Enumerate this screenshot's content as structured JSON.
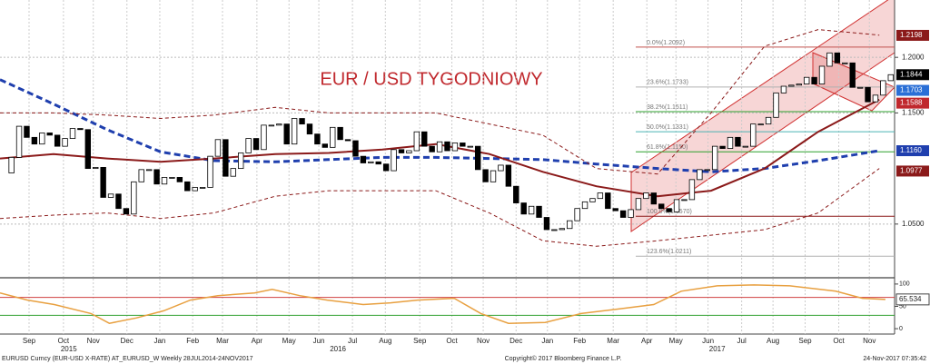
{
  "chart_data": [
    {
      "type": "candlestick",
      "title": "EUR / USD TYGODNIOWY",
      "xlim": [
        0,
        117
      ],
      "xticks": [
        {
          "value": 3.8,
          "label": "Sep"
        },
        {
          "value": 8.3,
          "label": "Oct"
        },
        {
          "value": 12.2,
          "label": "Nov"
        },
        {
          "value": 16.6,
          "label": "Dec"
        },
        {
          "value": 20.9,
          "label": "Jan"
        },
        {
          "value": 25.2,
          "label": "Feb"
        },
        {
          "value": 29.1,
          "label": "Mar"
        },
        {
          "value": 33.6,
          "label": "Apr"
        },
        {
          "value": 37.8,
          "label": "May"
        },
        {
          "value": 41.7,
          "label": "Jun"
        },
        {
          "value": 46.1,
          "label": "Jul"
        },
        {
          "value": 50.4,
          "label": "Aug"
        },
        {
          "value": 54.9,
          "label": "Sep"
        },
        {
          "value": 59.1,
          "label": "Oct"
        },
        {
          "value": 63.2,
          "label": "Nov"
        },
        {
          "value": 67.5,
          "label": "Dec"
        },
        {
          "value": 71.6,
          "label": "Jan"
        },
        {
          "value": 75.8,
          "label": "Feb"
        },
        {
          "value": 80.2,
          "label": "Mar"
        },
        {
          "value": 84.6,
          "label": "Apr"
        },
        {
          "value": 88.4,
          "label": "May"
        },
        {
          "value": 92.6,
          "label": "Jun"
        },
        {
          "value": 97.0,
          "label": "Jul"
        },
        {
          "value": 101.1,
          "label": "Aug"
        },
        {
          "value": 105.3,
          "label": "Sep"
        },
        {
          "value": 109.7,
          "label": "Oct"
        },
        {
          "value": 113.7,
          "label": "Nov"
        }
      ],
      "year_ticks": [
        {
          "value": 9.0,
          "label": "2015"
        },
        {
          "value": 44.2,
          "label": "2016"
        },
        {
          "value": 93.8,
          "label": "2017"
        }
      ],
      "ylim": [
        1.0025,
        1.2516
      ],
      "yticks": [
        {
          "value": 1.2,
          "label": "1.2000"
        },
        {
          "value": 1.15,
          "label": "1.1500"
        },
        {
          "value": 1.05,
          "label": "1.0500"
        }
      ],
      "grid": true,
      "up_color": "#ffffff",
      "down_color": "#000000",
      "close": [
        1.096,
        1.11,
        1.138,
        1.128,
        1.122,
        1.132,
        1.13,
        1.12,
        1.127,
        1.136,
        1.135,
        1.1,
        1.101,
        1.074,
        1.077,
        1.064,
        1.059,
        1.088,
        1.099,
        1.099,
        1.086,
        1.092,
        1.092,
        1.088,
        1.08,
        1.083,
        1.083,
        1.111,
        1.126,
        1.093,
        1.1,
        1.114,
        1.127,
        1.117,
        1.139,
        1.139,
        1.14,
        1.122,
        1.145,
        1.14,
        1.131,
        1.122,
        1.119,
        1.137,
        1.126,
        1.125,
        1.111,
        1.105,
        1.106,
        1.104,
        1.098,
        1.117,
        1.114,
        1.116,
        1.133,
        1.12,
        1.115,
        1.124,
        1.116,
        1.123,
        1.12,
        1.12,
        1.099,
        1.088,
        1.098,
        1.103,
        1.084,
        1.069,
        1.059,
        1.066,
        1.056,
        1.045,
        1.045,
        1.046,
        1.053,
        1.064,
        1.07,
        1.073,
        1.078,
        1.064,
        1.062,
        1.056,
        1.063,
        1.073,
        1.078,
        1.068,
        1.064,
        1.061,
        1.072,
        1.072,
        1.09,
        1.099,
        1.099,
        1.12,
        1.118,
        1.128,
        1.12,
        1.12,
        1.14,
        1.14,
        1.146,
        1.168,
        1.174,
        1.175,
        1.176,
        1.182,
        1.176,
        1.192,
        1.204,
        1.195,
        1.195,
        1.173,
        1.173,
        1.16,
        1.166,
        1.179,
        1.1844
      ],
      "overlays": [
        {
          "color": "#1f3fae",
          "dash": true,
          "width": 3,
          "x": [
            0,
            7,
            14,
            21,
            28,
            36,
            43,
            50,
            57,
            64,
            71,
            78,
            86,
            93,
            100,
            107,
            115
          ],
          "values": [
            1.18,
            1.158,
            1.135,
            1.115,
            1.107,
            1.106,
            1.108,
            1.11,
            1.11,
            1.109,
            1.108,
            1.104,
            1.1,
            1.097,
            1.1,
            1.107,
            1.116
          ]
        },
        {
          "color": "#8b1a1a",
          "dash": false,
          "width": 2,
          "x": [
            0,
            7,
            14,
            21,
            28,
            36,
            43,
            50,
            57,
            64,
            71,
            78,
            86,
            93,
            100,
            107,
            115
          ],
          "values": [
            1.109,
            1.113,
            1.109,
            1.106,
            1.109,
            1.113,
            1.114,
            1.117,
            1.122,
            1.113,
            1.097,
            1.084,
            1.075,
            1.08,
            1.1,
            1.133,
            1.162
          ]
        },
        {
          "color": "#8b1a1a",
          "dash": true,
          "width": 1,
          "x": [
            0,
            7,
            14,
            21,
            28,
            36,
            43,
            50,
            57,
            64,
            71,
            78,
            86,
            93,
            100,
            107,
            115
          ],
          "values": [
            1.15,
            1.15,
            1.148,
            1.145,
            1.148,
            1.155,
            1.15,
            1.15,
            1.15,
            1.14,
            1.13,
            1.1,
            1.095,
            1.15,
            1.21,
            1.225,
            1.22
          ]
        },
        {
          "color": "#8b1a1a",
          "dash": true,
          "width": 1,
          "x": [
            0,
            7,
            14,
            21,
            28,
            36,
            43,
            50,
            57,
            64,
            71,
            78,
            86,
            93,
            100,
            107,
            115
          ],
          "values": [
            1.055,
            1.058,
            1.06,
            1.055,
            1.06,
            1.075,
            1.08,
            1.08,
            1.08,
            1.06,
            1.035,
            1.03,
            1.035,
            1.04,
            1.045,
            1.06,
            1.1
          ]
        }
      ],
      "fib_levels": [
        {
          "value": 1.2092,
          "label": "0.0%(1.2092)",
          "color": "#c0504d"
        },
        {
          "value": 1.1733,
          "label": "23.6%(1.1733)",
          "color": "#b0b0b0"
        },
        {
          "value": 1.1511,
          "label": "38.2%(1.1511)",
          "color": "#2ca02c"
        },
        {
          "value": 1.1331,
          "label": "50.0%(1.1331)",
          "color": "#4bb4b4"
        },
        {
          "value": 1.115,
          "label": "61.8%(1.1150)",
          "color": "#2ca02c"
        },
        {
          "value": 1.057,
          "label": "100.0%(1.0570)",
          "color": "#8b1a1a"
        },
        {
          "value": 1.0211,
          "label": "123.6%(1.0211)",
          "color": "#b0b0b0"
        }
      ],
      "price_labels": [
        {
          "value": 1.2198,
          "color": "#8b1a1a"
        },
        {
          "value": 1.1844,
          "color": "#000000"
        },
        {
          "value": 1.1703,
          "color": "#2a6fd6"
        },
        {
          "value": 1.1588,
          "color": "#c0282d"
        },
        {
          "value": 1.116,
          "label": "1.1160",
          "color": "#1f3fae"
        },
        {
          "value": 1.0977,
          "color": "#8b1a1a"
        }
      ]
    },
    {
      "type": "line",
      "xlim": [
        0,
        117
      ],
      "ylim": [
        -12,
        112
      ],
      "yticks": [
        100,
        50,
        0
      ],
      "color": "#e8a040",
      "x": [
        0,
        3.6,
        7.1,
        11.9,
        14.3,
        17.8,
        21.4,
        24.9,
        28.5,
        33.3,
        35.6,
        39.2,
        42.8,
        47.5,
        51.1,
        54.6,
        59.4,
        62.9,
        66.5,
        71.3,
        76,
        80.8,
        85.5,
        89.1,
        93.8,
        98.6,
        103.3,
        109.3,
        112.8,
        115.8
      ],
      "values": [
        80,
        64,
        54,
        34,
        12,
        24,
        40,
        64,
        74,
        80,
        88,
        74,
        64,
        54,
        58,
        64,
        68,
        34,
        12,
        14,
        34,
        44,
        54,
        84,
        96,
        98,
        96,
        84,
        68,
        65.534
      ],
      "levels": [
        {
          "value": 70,
          "color": "#d04040"
        },
        {
          "value": 30,
          "color": "#30a030"
        }
      ],
      "last_value": 65.534
    }
  ],
  "footer": {
    "left": "EURUSD Curncy (EUR-USD X-RATE) AT_EURUSD_W  Weekly 28JUL2014-24NOV2017",
    "center": "Copyright© 2017 Bloomberg Finance L.P.",
    "right": "24-Nov-2017 07:35:42"
  }
}
